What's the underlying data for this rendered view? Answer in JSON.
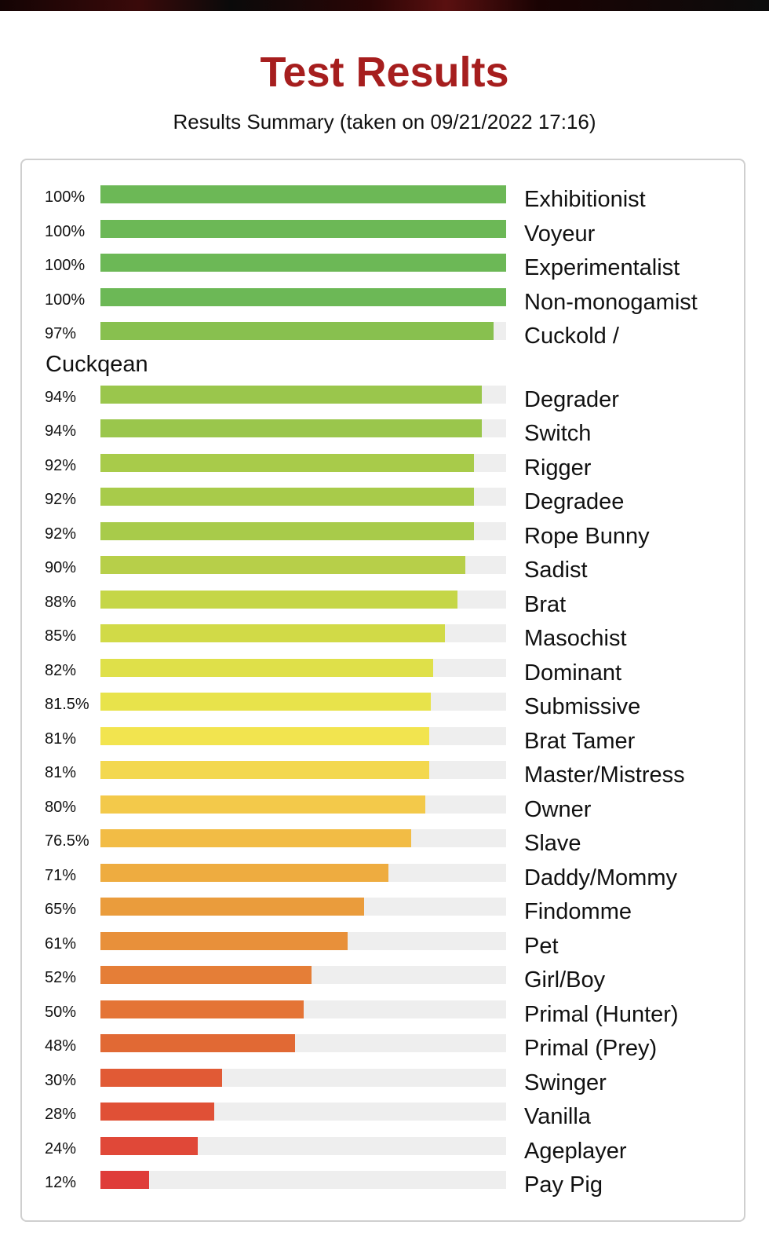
{
  "header": {
    "title": "Test Results",
    "subtitle": "Results Summary (taken on 09/21/2022 17:16)"
  },
  "wrapped_label_tail": "Cuckqean",
  "chart_data": {
    "type": "bar",
    "orientation": "horizontal",
    "xlim": [
      0,
      100
    ],
    "unit": "%",
    "categories": [
      "Exhibitionist",
      "Voyeur",
      "Experimentalist",
      "Non-monogamist",
      "Cuckold /",
      "Degrader",
      "Switch",
      "Rigger",
      "Degradee",
      "Rope Bunny",
      "Sadist",
      "Brat",
      "Masochist",
      "Dominant",
      "Submissive",
      "Brat Tamer",
      "Master/Mistress",
      "Owner",
      "Slave",
      "Daddy/Mommy",
      "Findomme",
      "Pet",
      "Girl/Boy",
      "Primal (Hunter)",
      "Primal (Prey)",
      "Swinger",
      "Vanilla",
      "Ageplayer",
      "Pay Pig"
    ],
    "values": [
      100,
      100,
      100,
      100,
      97,
      94,
      94,
      92,
      92,
      92,
      90,
      88,
      85,
      82,
      81.5,
      81,
      81,
      80,
      76.5,
      71,
      65,
      61,
      52,
      50,
      48,
      30,
      28,
      24,
      12
    ],
    "value_labels": [
      "100%",
      "100%",
      "100%",
      "100%",
      "97%",
      "94%",
      "94%",
      "92%",
      "92%",
      "92%",
      "90%",
      "88%",
      "85%",
      "82%",
      "81.5%",
      "81%",
      "81%",
      "80%",
      "76.5%",
      "71%",
      "65%",
      "61%",
      "52%",
      "50%",
      "48%",
      "30%",
      "28%",
      "24%",
      "12%"
    ],
    "colors": [
      "#6cb856",
      "#6cb856",
      "#6cb856",
      "#6cb856",
      "#88c04f",
      "#9ac64c",
      "#9ac64c",
      "#a8cb4a",
      "#a8cb4a",
      "#a8cb4a",
      "#b7cf49",
      "#c5d647",
      "#d1da47",
      "#dfe049",
      "#e8e34b",
      "#f2e44f",
      "#f3d84f",
      "#f3c94a",
      "#f2bc45",
      "#eeac40",
      "#ea9c3c",
      "#e8903a",
      "#e57e37",
      "#e47436",
      "#e16934",
      "#e15a35",
      "#e05036",
      "#e04838",
      "#df3c39"
    ],
    "track_color": "#eeeeee",
    "grid": false,
    "legend": "none"
  }
}
